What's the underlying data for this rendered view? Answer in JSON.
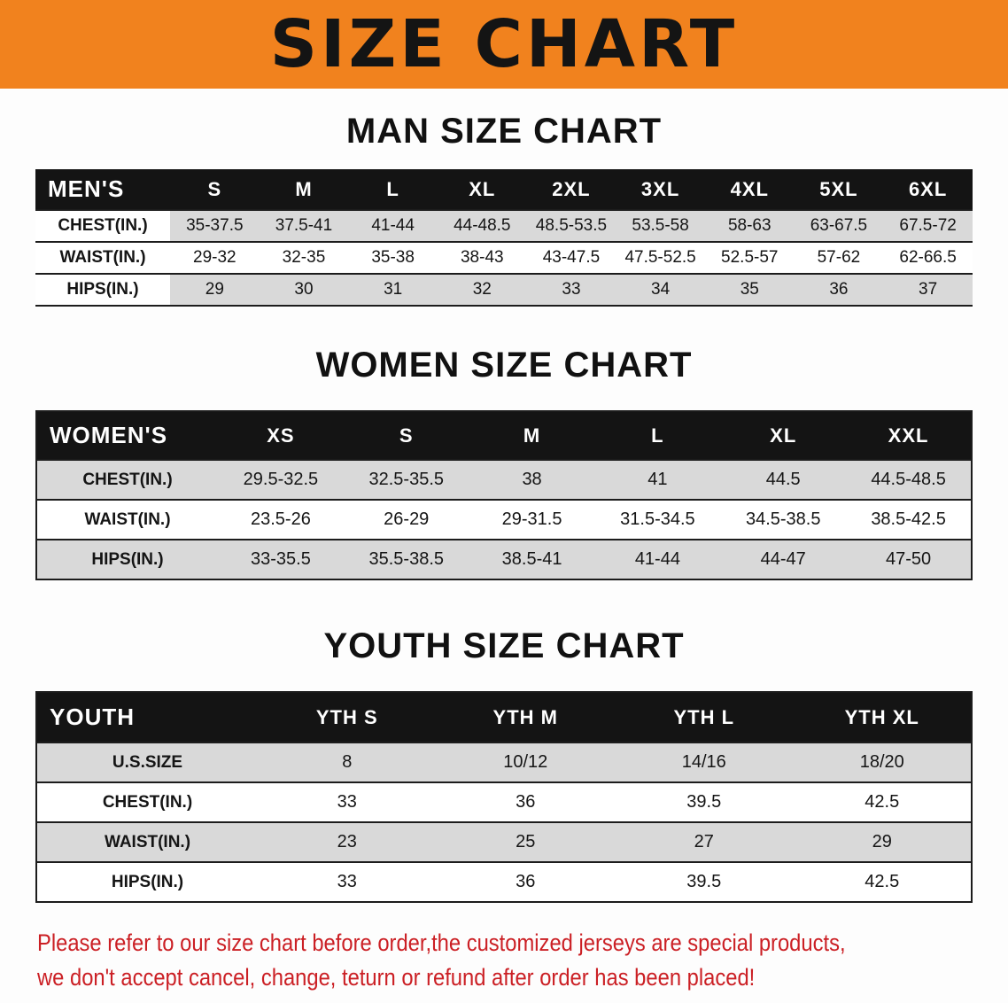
{
  "banner": {
    "title": "SIZE CHART"
  },
  "colors": {
    "banner_bg": "#f1821e",
    "table_header_bg": "#141414",
    "row_stripe": "#d9d9d9",
    "footer_text": "#cb1f24"
  },
  "sections": [
    {
      "heading": "MAN SIZE CHART",
      "table": {
        "label": "MEN'S",
        "columns": [
          "S",
          "M",
          "L",
          "XL",
          "2XL",
          "3XL",
          "4XL",
          "5XL",
          "6XL"
        ],
        "rows": [
          {
            "label": "CHEST(IN.)",
            "values": [
              "35-37.5",
              "37.5-41",
              "41-44",
              "44-48.5",
              "48.5-53.5",
              "53.5-58",
              "58-63",
              "63-67.5",
              "67.5-72"
            ]
          },
          {
            "label": "WAIST(IN.)",
            "values": [
              "29-32",
              "32-35",
              "35-38",
              "38-43",
              "43-47.5",
              "47.5-52.5",
              "52.5-57",
              "57-62",
              "62-66.5"
            ]
          },
          {
            "label": "HIPS(IN.)",
            "values": [
              "29",
              "30",
              "31",
              "32",
              "33",
              "34",
              "35",
              "36",
              "37"
            ]
          }
        ]
      }
    },
    {
      "heading": "WOMEN SIZE CHART",
      "table": {
        "label": "WOMEN'S",
        "columns": [
          "XS",
          "S",
          "M",
          "L",
          "XL",
          "XXL"
        ],
        "rows": [
          {
            "label": "CHEST(IN.)",
            "values": [
              "29.5-32.5",
              "32.5-35.5",
              "38",
              "41",
              "44.5",
              "44.5-48.5"
            ]
          },
          {
            "label": "WAIST(IN.)",
            "values": [
              "23.5-26",
              "26-29",
              "29-31.5",
              "31.5-34.5",
              "34.5-38.5",
              "38.5-42.5"
            ]
          },
          {
            "label": "HIPS(IN.)",
            "values": [
              "33-35.5",
              "35.5-38.5",
              "38.5-41",
              "41-44",
              "44-47",
              "47-50"
            ]
          }
        ]
      }
    },
    {
      "heading": "YOUTH SIZE CHART",
      "table": {
        "label": "YOUTH",
        "columns": [
          "YTH S",
          "YTH M",
          "YTH L",
          "YTH XL"
        ],
        "rows": [
          {
            "label": "U.S.SIZE",
            "values": [
              "8",
              "10/12",
              "14/16",
              "18/20"
            ]
          },
          {
            "label": "CHEST(IN.)",
            "values": [
              "33",
              "36",
              "39.5",
              "42.5"
            ]
          },
          {
            "label": "WAIST(IN.)",
            "values": [
              "23",
              "25",
              "27",
              "29"
            ]
          },
          {
            "label": "HIPS(IN.)",
            "values": [
              "33",
              "36",
              "39.5",
              "42.5"
            ]
          }
        ]
      }
    }
  ],
  "footer": {
    "line1": "Please refer to our size chart before order,the customized jerseys are special products,",
    "line2": "we don't accept cancel, change, teturn or refund after order has been placed!"
  }
}
